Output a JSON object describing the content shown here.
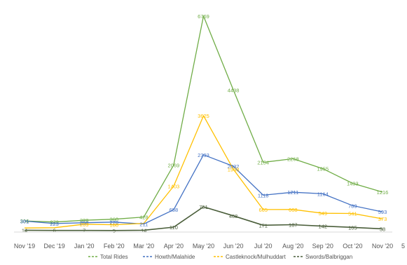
{
  "chart_data": {
    "type": "line",
    "categories": [
      "Nov '19",
      "Dec '19",
      "Jan '20",
      "Feb '20",
      "Mar '20",
      "Apr '20",
      "May '20",
      "Jun '20",
      "Jul '20",
      "Aug '20",
      "Sep '20",
      "Oct '20",
      "Nov '20"
    ],
    "ylim": [
      0,
      7000
    ],
    "grid": false,
    "legend_position": "bottom",
    "series": [
      {
        "name": "Total Rides",
        "color": "#70ad47",
        "values": [
          306,
          273,
          328,
          360,
          428,
          2069,
          6769,
          4438,
          2154,
          2268,
          1955,
          1493,
          1216
        ]
      },
      {
        "name": "Howth/Malahide",
        "color": "#4472c4",
        "values": [
          301,
          223,
          250,
          270,
          211,
          658,
          2393,
          2032,
          1118,
          1211,
          1164,
          789,
          593
        ]
      },
      {
        "name": "Castleknock/Mulhuddart",
        "color": "#ffc000",
        "values": [
          84,
          92,
          203,
          186,
          231,
          1403,
          3625,
          1938,
          665,
          668,
          549,
          541,
          373
        ]
      },
      {
        "name": "Swords/Balbriggan",
        "color": "#4a5e3a",
        "values": [
          14,
          6,
          7,
          5,
          14,
          110,
          751,
          468,
          171,
          187,
          142,
          105,
          58
        ]
      }
    ],
    "data_labels": {
      "Total Rides": [
        "306",
        "273",
        "328",
        "360",
        "428",
        "2069",
        "6769",
        "4438",
        "2154",
        "2268",
        "1955",
        "1493",
        "1216"
      ],
      "Howth/Malahide": [
        "301",
        "223",
        "250",
        "270",
        "211",
        "658",
        "2393",
        "2032",
        "1118",
        "1211",
        "1164",
        "789",
        "593"
      ],
      "Castleknock/Mulhuddart": [
        "",
        "",
        "203",
        "186",
        "",
        "1403",
        "3625",
        "1938",
        "665",
        "668",
        "549",
        "541",
        "373"
      ],
      "Swords/Balbriggan": [
        "14",
        "6",
        "7",
        "5",
        "14",
        "110",
        "751",
        "468",
        "171",
        "187",
        "142",
        "105",
        "58"
      ]
    },
    "stray_text": "5"
  }
}
